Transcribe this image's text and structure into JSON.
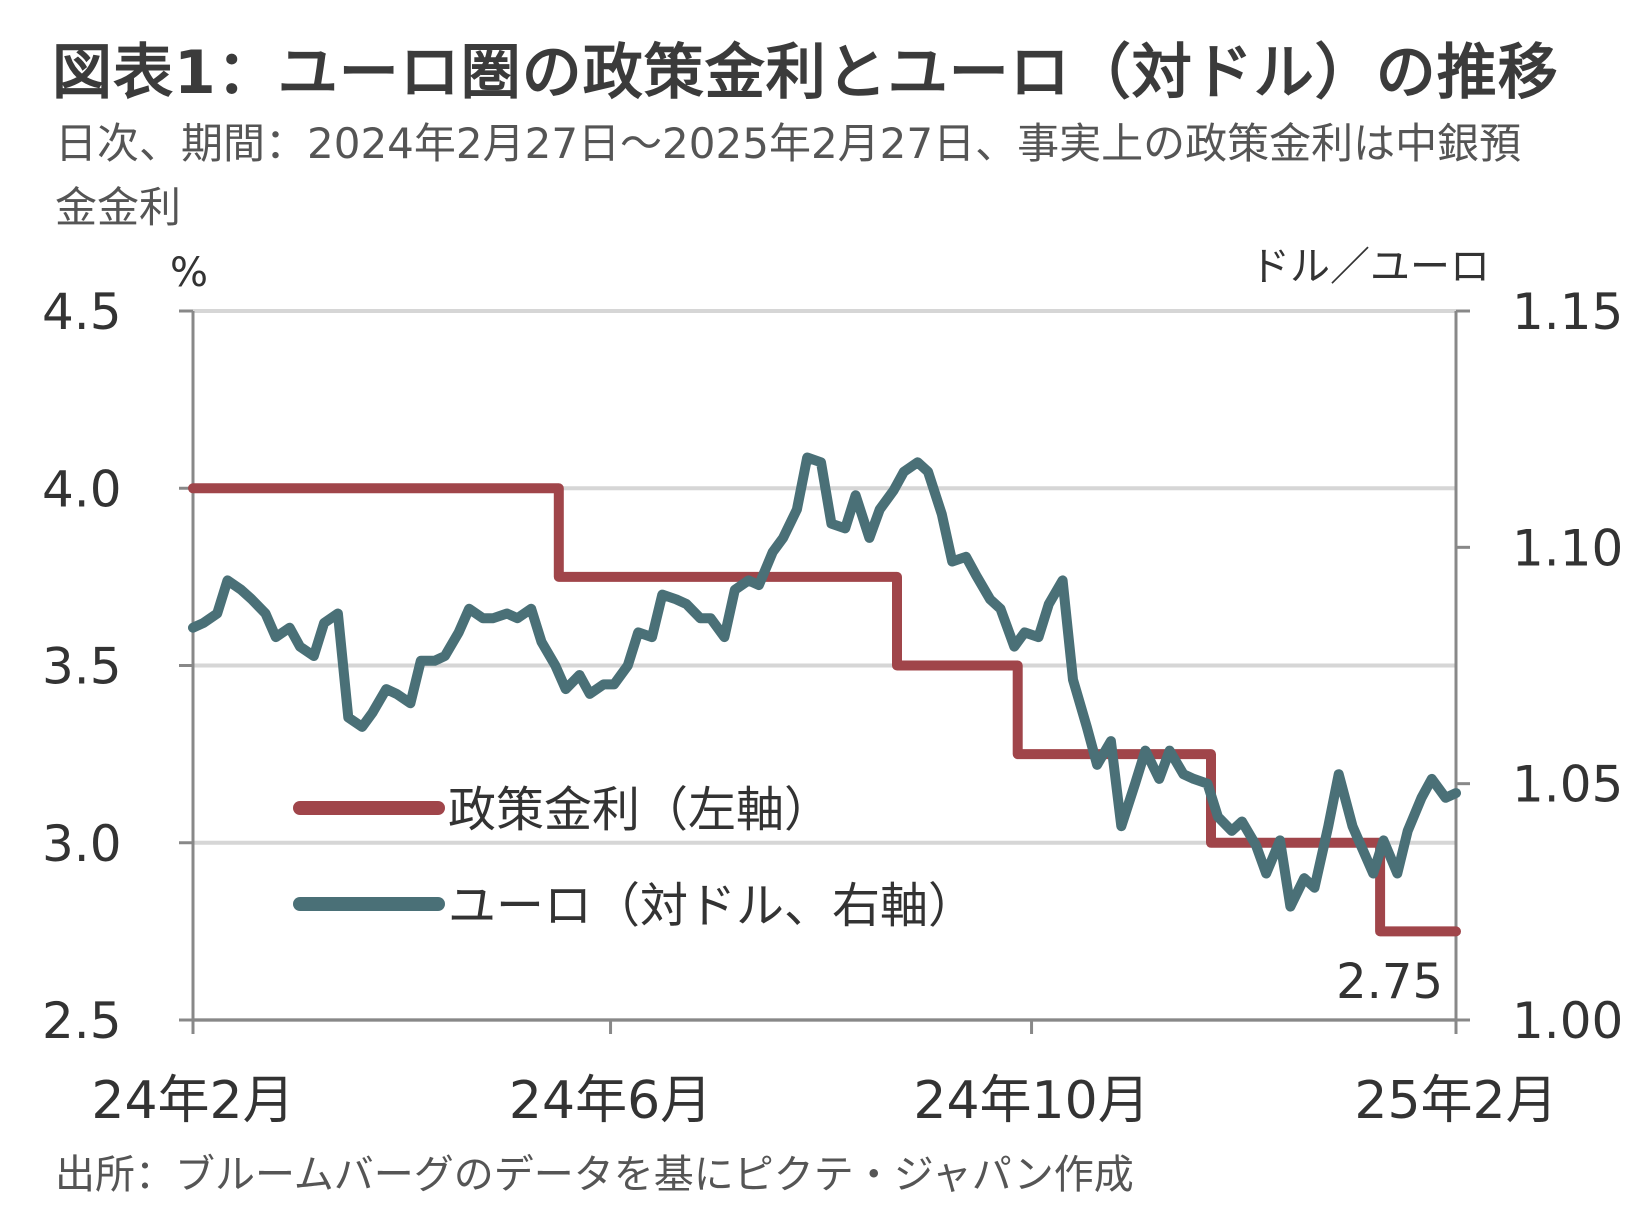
{
  "title": "図表1：ユーロ圏の政策金利とユーロ（対ドル）の推移",
  "subtitle": "日次、期間：2024年2月27日～2025年2月27日、事実上の政策金利は中銀預金金利",
  "source": "出所：ブルームバーグのデータを基にピクテ・ジャパン作成",
  "colors": {
    "policy_rate": "#a0454a",
    "euro_usd": "#4a7077",
    "grid": "#d6d6d6",
    "axis": "#888888"
  },
  "chart_data": {
    "type": "line",
    "x_range": [
      "2024-02-27",
      "2025-02-27"
    ],
    "x_ticks": [
      {
        "date": "2024-02-27",
        "label": "24年2月"
      },
      {
        "date": "2024-06-27",
        "label": "24年6月"
      },
      {
        "date": "2024-10-27",
        "label": "24年10月"
      },
      {
        "date": "2025-02-27",
        "label": "25年2月"
      }
    ],
    "y_left": {
      "label": "%",
      "min": 2.5,
      "max": 4.5,
      "ticks": [
        "4.5",
        "4.0",
        "3.5",
        "3.0",
        "2.5"
      ]
    },
    "y_right": {
      "label": "ドル／ユーロ",
      "min": 1.0,
      "max": 1.15,
      "ticks": [
        "1.15",
        "1.10",
        "1.05",
        "1.00"
      ]
    },
    "grid": true,
    "legend_position": "bottom-left",
    "series": [
      {
        "name": "政策金利（左軸）",
        "axis": "left",
        "step": true,
        "points": [
          [
            "2024-02-27",
            4.0
          ],
          [
            "2024-06-12",
            3.75
          ],
          [
            "2024-09-18",
            3.5
          ],
          [
            "2024-10-23",
            3.25
          ],
          [
            "2024-12-18",
            3.0
          ],
          [
            "2025-02-05",
            2.75
          ],
          [
            "2025-02-27",
            2.75
          ]
        ]
      },
      {
        "name": "ユーロ（対ドル、右軸）",
        "axis": "right",
        "points": [
          [
            "2024-02-27",
            1.083
          ],
          [
            "2024-03-01",
            1.084
          ],
          [
            "2024-03-05",
            1.086
          ],
          [
            "2024-03-08",
            1.093
          ],
          [
            "2024-03-12",
            1.091
          ],
          [
            "2024-03-15",
            1.089
          ],
          [
            "2024-03-19",
            1.086
          ],
          [
            "2024-03-22",
            1.081
          ],
          [
            "2024-03-26",
            1.083
          ],
          [
            "2024-03-29",
            1.079
          ],
          [
            "2024-04-02",
            1.077
          ],
          [
            "2024-04-05",
            1.084
          ],
          [
            "2024-04-09",
            1.086
          ],
          [
            "2024-04-12",
            1.064
          ],
          [
            "2024-04-16",
            1.062
          ],
          [
            "2024-04-19",
            1.065
          ],
          [
            "2024-04-23",
            1.07
          ],
          [
            "2024-04-26",
            1.069
          ],
          [
            "2024-04-30",
            1.067
          ],
          [
            "2024-05-03",
            1.076
          ],
          [
            "2024-05-07",
            1.076
          ],
          [
            "2024-05-10",
            1.077
          ],
          [
            "2024-05-14",
            1.082
          ],
          [
            "2024-05-17",
            1.087
          ],
          [
            "2024-05-21",
            1.085
          ],
          [
            "2024-05-24",
            1.085
          ],
          [
            "2024-05-28",
            1.086
          ],
          [
            "2024-05-31",
            1.085
          ],
          [
            "2024-06-04",
            1.087
          ],
          [
            "2024-06-07",
            1.08
          ],
          [
            "2024-06-11",
            1.075
          ],
          [
            "2024-06-14",
            1.07
          ],
          [
            "2024-06-18",
            1.073
          ],
          [
            "2024-06-21",
            1.069
          ],
          [
            "2024-06-25",
            1.071
          ],
          [
            "2024-06-28",
            1.071
          ],
          [
            "2024-07-02",
            1.075
          ],
          [
            "2024-07-05",
            1.082
          ],
          [
            "2024-07-09",
            1.081
          ],
          [
            "2024-07-12",
            1.09
          ],
          [
            "2024-07-16",
            1.089
          ],
          [
            "2024-07-19",
            1.088
          ],
          [
            "2024-07-23",
            1.085
          ],
          [
            "2024-07-26",
            1.085
          ],
          [
            "2024-07-30",
            1.081
          ],
          [
            "2024-08-02",
            1.091
          ],
          [
            "2024-08-06",
            1.093
          ],
          [
            "2024-08-09",
            1.092
          ],
          [
            "2024-08-13",
            1.099
          ],
          [
            "2024-08-16",
            1.102
          ],
          [
            "2024-08-20",
            1.108
          ],
          [
            "2024-08-23",
            1.119
          ],
          [
            "2024-08-27",
            1.118
          ],
          [
            "2024-08-30",
            1.105
          ],
          [
            "2024-09-03",
            1.104
          ],
          [
            "2024-09-06",
            1.111
          ],
          [
            "2024-09-10",
            1.102
          ],
          [
            "2024-09-13",
            1.108
          ],
          [
            "2024-09-17",
            1.112
          ],
          [
            "2024-09-20",
            1.116
          ],
          [
            "2024-09-24",
            1.118
          ],
          [
            "2024-09-27",
            1.116
          ],
          [
            "2024-10-01",
            1.107
          ],
          [
            "2024-10-04",
            1.097
          ],
          [
            "2024-10-08",
            1.098
          ],
          [
            "2024-10-11",
            1.094
          ],
          [
            "2024-10-15",
            1.089
          ],
          [
            "2024-10-18",
            1.087
          ],
          [
            "2024-10-22",
            1.079
          ],
          [
            "2024-10-25",
            1.082
          ],
          [
            "2024-10-29",
            1.081
          ],
          [
            "2024-11-01",
            1.088
          ],
          [
            "2024-11-05",
            1.093
          ],
          [
            "2024-11-08",
            1.072
          ],
          [
            "2024-11-12",
            1.062
          ],
          [
            "2024-11-15",
            1.054
          ],
          [
            "2024-11-19",
            1.059
          ],
          [
            "2024-11-22",
            1.041
          ],
          [
            "2024-11-26",
            1.05
          ],
          [
            "2024-11-29",
            1.057
          ],
          [
            "2024-12-03",
            1.051
          ],
          [
            "2024-12-06",
            1.057
          ],
          [
            "2024-12-10",
            1.052
          ],
          [
            "2024-12-13",
            1.051
          ],
          [
            "2024-12-17",
            1.05
          ],
          [
            "2024-12-20",
            1.043
          ],
          [
            "2024-12-24",
            1.04
          ],
          [
            "2024-12-27",
            1.042
          ],
          [
            "2024-12-31",
            1.037
          ],
          [
            "2025-01-03",
            1.031
          ],
          [
            "2025-01-07",
            1.038
          ],
          [
            "2025-01-10",
            1.024
          ],
          [
            "2025-01-14",
            1.03
          ],
          [
            "2025-01-17",
            1.028
          ],
          [
            "2025-01-21",
            1.041
          ],
          [
            "2025-01-24",
            1.052
          ],
          [
            "2025-01-28",
            1.041
          ],
          [
            "2025-01-31",
            1.036
          ],
          [
            "2025-02-03",
            1.031
          ],
          [
            "2025-02-06",
            1.038
          ],
          [
            "2025-02-10",
            1.031
          ],
          [
            "2025-02-13",
            1.04
          ],
          [
            "2025-02-17",
            1.047
          ],
          [
            "2025-02-20",
            1.051
          ],
          [
            "2025-02-24",
            1.047
          ],
          [
            "2025-02-27",
            1.048
          ]
        ]
      }
    ],
    "annotations": [
      {
        "text": "2.75"
      }
    ]
  }
}
